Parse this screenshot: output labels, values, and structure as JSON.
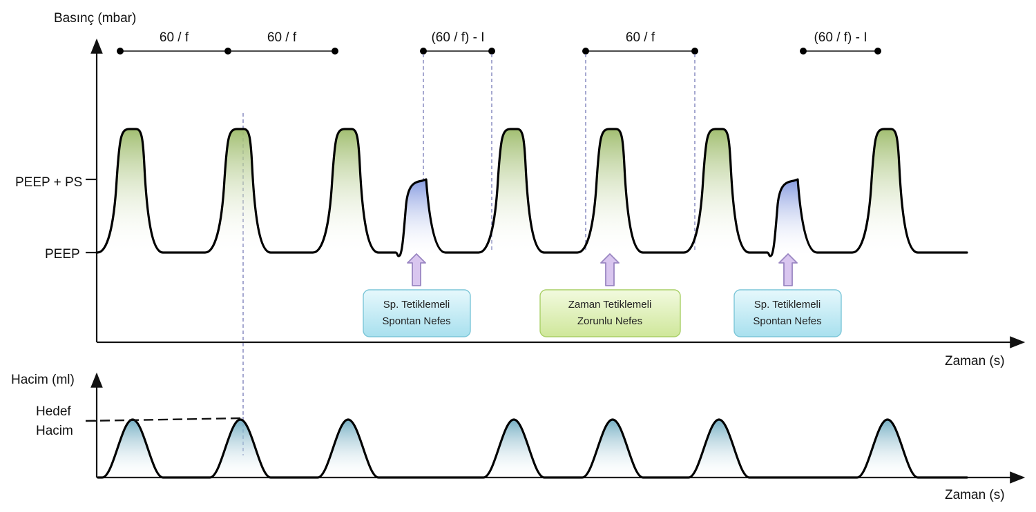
{
  "pressure_axis": {
    "title": "Basınç (mbar)",
    "level_high": "PEEP + PS",
    "level_low": "PEEP",
    "time_label": "Zaman (s)"
  },
  "volume_axis": {
    "title": "Hacim (ml)",
    "target_line1": "Hedef",
    "target_line2": "Hacim",
    "time_label": "Zaman (s)"
  },
  "intervals": [
    "60 / f",
    "60 / f",
    "(60 / f) - I",
    "60 / f",
    "(60 / f) - I"
  ],
  "callouts": [
    {
      "line1": "Sp. Tetiklemeli",
      "line2": "Spontan Nefes",
      "kind": "spontaneous"
    },
    {
      "line1": "Zaman Tetiklemeli",
      "line2": "Zorunlu Nefes",
      "kind": "mandatory"
    },
    {
      "line1": "Sp. Tetiklemeli",
      "line2": "Spontan Nefes",
      "kind": "spontaneous"
    }
  ],
  "breath_sequence": [
    "mandatory",
    "mandatory",
    "mandatory",
    "spontaneous",
    "mandatory",
    "mandatory",
    "mandatory",
    "spontaneous",
    "mandatory"
  ],
  "colors": {
    "mandatory_fill": "#9dbb6a",
    "spontaneous_fill": "#8a9ee0",
    "volume_fill": "#7fb6c9",
    "callout_spontaneous": "#c5ecf5",
    "callout_mandatory": "#dff0b3",
    "arrow_fill": "#d9c6ef",
    "arrow_stroke": "#9a86c2",
    "guide_dash": "#6a6fb0"
  }
}
